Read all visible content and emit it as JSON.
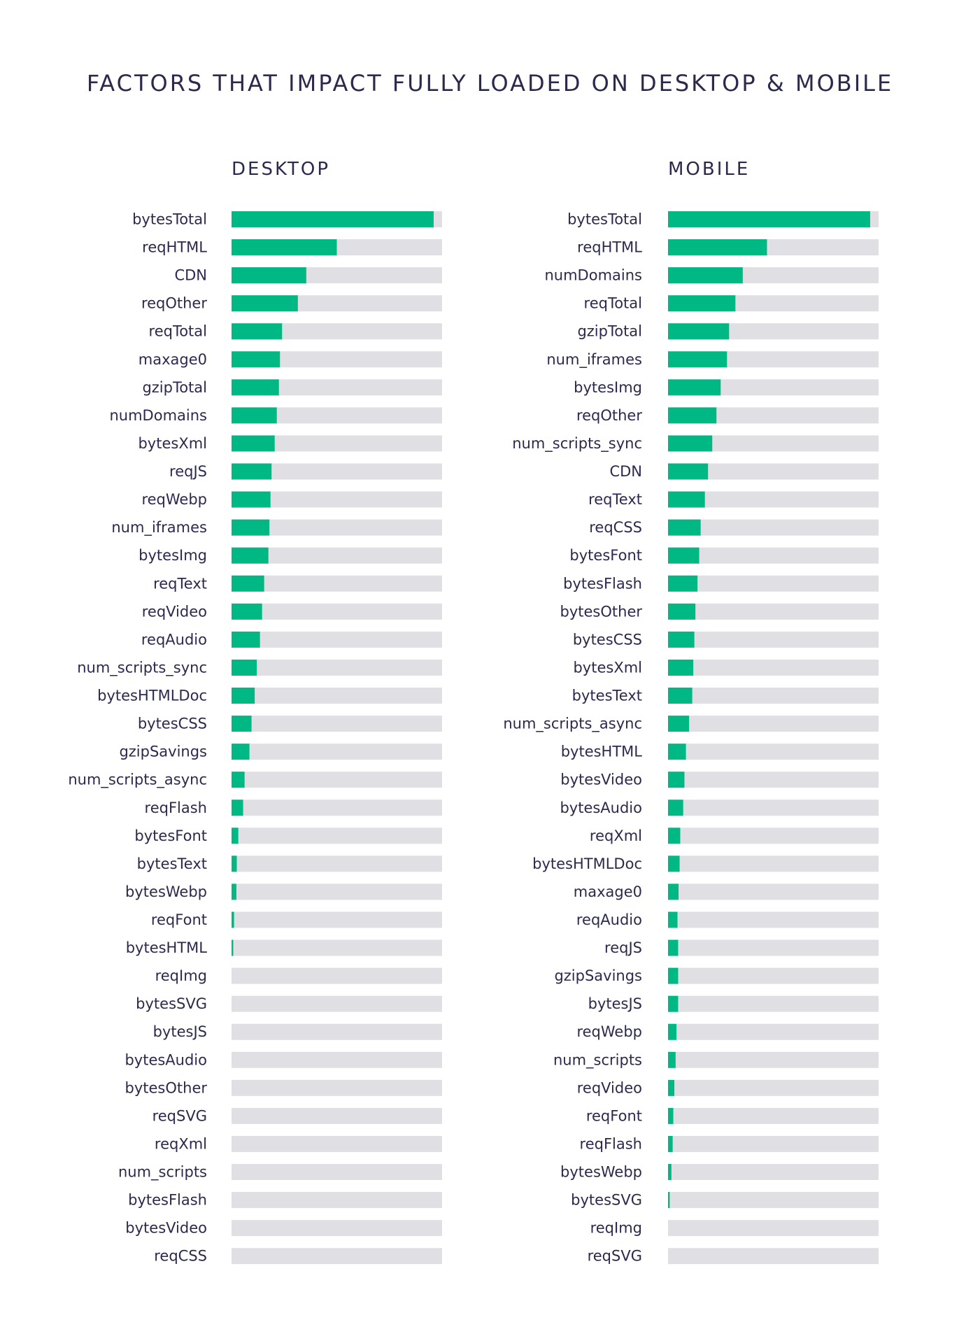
{
  "title": "FACTORS THAT IMPACT FULLY LOADED ON DESKTOP & MOBILE",
  "colors": {
    "bar": "#00b884",
    "track": "#dfdfe4",
    "text": "#2b2a4c"
  },
  "chart_data": [
    {
      "type": "bar",
      "orientation": "horizontal",
      "title": "DESKTOP",
      "xlim": [
        0,
        1
      ],
      "categories": [
        "bytesTotal",
        "reqHTML",
        "CDN",
        "reqOther",
        "reqTotal",
        "maxage0",
        "gzipTotal",
        "numDomains",
        "bytesXml",
        "reqJS",
        "reqWebp",
        "num_iframes",
        "bytesImg",
        "reqText",
        "reqVideo",
        "reqAudio",
        "num_scripts_sync",
        "bytesHTMLDoc",
        "bytesCSS",
        "gzipSavings",
        "num_scripts_async",
        "reqFlash",
        "bytesFont",
        "bytesText",
        "bytesWebp",
        "reqFont",
        "bytesHTML",
        "reqImg",
        "bytesSVG",
        "bytesJS",
        "bytesAudio",
        "bytesOther",
        "reqSVG",
        "reqXml",
        "num_scripts",
        "bytesFlash",
        "bytesVideo",
        "reqCSS"
      ],
      "values": [
        0.96,
        0.5,
        0.355,
        0.315,
        0.24,
        0.23,
        0.225,
        0.215,
        0.205,
        0.19,
        0.185,
        0.18,
        0.175,
        0.155,
        0.145,
        0.135,
        0.12,
        0.11,
        0.095,
        0.085,
        0.062,
        0.055,
        0.032,
        0.025,
        0.023,
        0.012,
        0.008,
        0,
        0,
        0,
        0,
        0,
        0,
        0,
        0,
        0,
        0,
        0
      ]
    },
    {
      "type": "bar",
      "orientation": "horizontal",
      "title": "MOBILE",
      "xlim": [
        0,
        1
      ],
      "categories": [
        "bytesTotal",
        "reqHTML",
        "numDomains",
        "reqTotal",
        "gzipTotal",
        "num_iframes",
        "bytesImg",
        "reqOther",
        "num_scripts_sync",
        "CDN",
        "reqText",
        "reqCSS",
        "bytesFont",
        "bytesFlash",
        "bytesOther",
        "bytesCSS",
        "bytesXml",
        "bytesText",
        "num_scripts_async",
        "bytesHTML",
        "bytesVideo",
        "bytesAudio",
        "reqXml",
        "bytesHTMLDoc",
        "maxage0",
        "reqAudio",
        "reqJS",
        "gzipSavings",
        "bytesJS",
        "reqWebp",
        "num_scripts",
        "reqVideo",
        "reqFont",
        "reqFlash",
        "bytesWebp",
        "bytesSVG",
        "reqImg",
        "reqSVG"
      ],
      "values": [
        0.96,
        0.47,
        0.355,
        0.32,
        0.29,
        0.28,
        0.25,
        0.23,
        0.21,
        0.19,
        0.175,
        0.155,
        0.148,
        0.14,
        0.13,
        0.125,
        0.12,
        0.115,
        0.1,
        0.085,
        0.078,
        0.072,
        0.058,
        0.055,
        0.05,
        0.045,
        0.048,
        0.048,
        0.048,
        0.04,
        0.036,
        0.03,
        0.025,
        0.022,
        0.016,
        0.008,
        0,
        0
      ]
    }
  ]
}
